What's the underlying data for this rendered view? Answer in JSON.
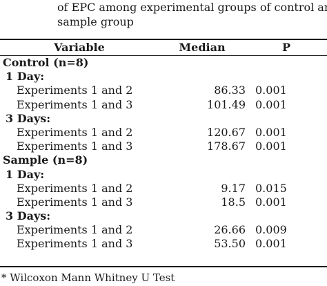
{
  "caption": {
    "line1": "of EPC among experimental groups of control and",
    "line2": "sample group"
  },
  "table": {
    "headers": {
      "variable": "Variable",
      "median": "Median",
      "p": "P"
    },
    "rows": [
      {
        "type": "group",
        "label": "Control (n=8)",
        "median": "",
        "p": ""
      },
      {
        "type": "sub",
        "label": "1 Day:",
        "median": "",
        "p": ""
      },
      {
        "type": "data",
        "label": "Experiments 1 and 2",
        "median": "86.33",
        "p": "0.001"
      },
      {
        "type": "data",
        "label": "Experiments 1 and 3",
        "median": "101.49",
        "p": "0.001"
      },
      {
        "type": "sub",
        "label": "3 Days:",
        "median": "",
        "p": ""
      },
      {
        "type": "data",
        "label": "Experiments 1 and 2",
        "median": "120.67",
        "p": "0.001"
      },
      {
        "type": "data",
        "label": "Experiments 1 and 3",
        "median": "178.67",
        "p": "0.001"
      },
      {
        "type": "group",
        "label": "Sample (n=8)",
        "median": "",
        "p": ""
      },
      {
        "type": "sub",
        "label": "1 Day:",
        "median": "",
        "p": ""
      },
      {
        "type": "data",
        "label": "Experiments 1 and 2",
        "median": "9.17",
        "p": "0.015"
      },
      {
        "type": "data",
        "label": "Experiments 1 and 3",
        "median": "18.5",
        "p": "0.001"
      },
      {
        "type": "sub",
        "label": "3 Days:",
        "median": "",
        "p": ""
      },
      {
        "type": "data",
        "label": "Experiments 1 and 2",
        "median": "26.66",
        "p": "0.009"
      },
      {
        "type": "data",
        "label": "Experiments 1 and 3",
        "median": "53.50",
        "p": "0.001"
      }
    ]
  },
  "footnote": "*  Wilcoxon Mann Whitney U Test"
}
